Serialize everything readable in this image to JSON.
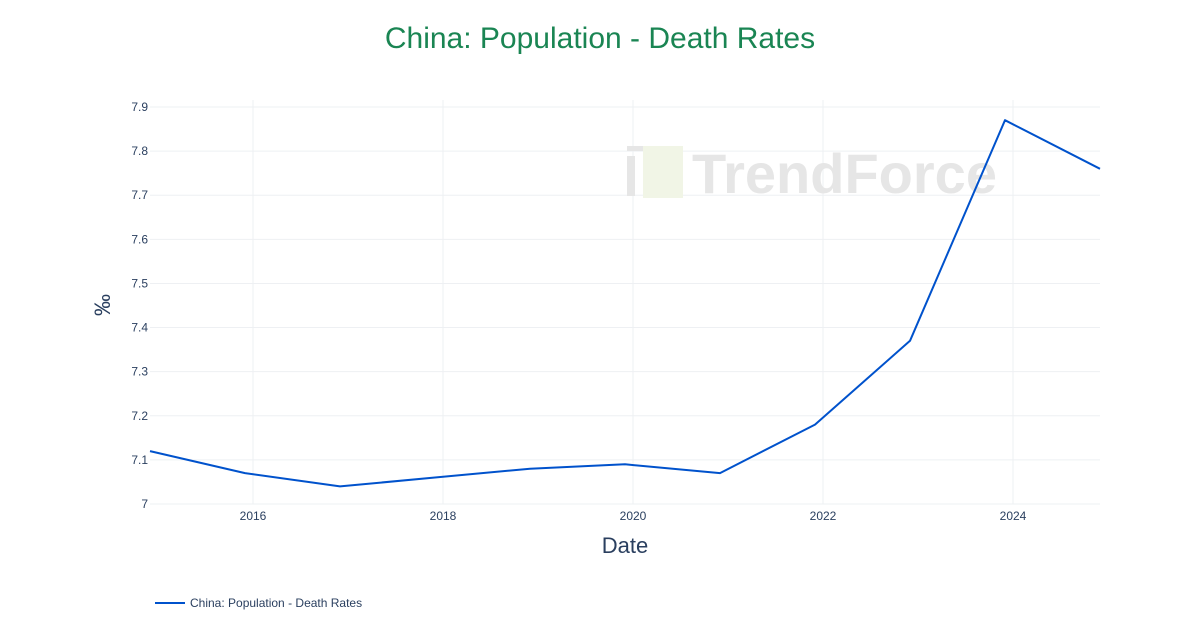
{
  "chart_data": {
    "type": "line",
    "title": "China: Population - Death Rates",
    "xlabel": "Date",
    "ylabel": "‰",
    "x": [
      "2014-12",
      "2015-12",
      "2016-12",
      "2017-12",
      "2018-12",
      "2019-12",
      "2020-12",
      "2021-12",
      "2022-12",
      "2023-12",
      "2024-12"
    ],
    "series": [
      {
        "name": "China: Population - Death Rates",
        "color": "#0052cc",
        "values": [
          7.12,
          7.07,
          7.04,
          7.06,
          7.08,
          7.09,
          7.07,
          7.18,
          7.37,
          7.87,
          7.76
        ]
      }
    ],
    "x_ticks": [
      "2016",
      "2018",
      "2020",
      "2022",
      "2024"
    ],
    "y_ticks": [
      "7",
      "7.1",
      "7.2",
      "7.3",
      "7.4",
      "7.5",
      "7.6",
      "7.7",
      "7.8",
      "7.9"
    ],
    "ylim": [
      7.0,
      7.9
    ],
    "grid": true,
    "legend_position": "bottom-left"
  },
  "header": {
    "title": "China: Population - Death Rates"
  },
  "legend": {
    "label": "China: Population - Death Rates"
  },
  "watermark": {
    "text": "TrendForce"
  },
  "axes": {
    "x_title": "Date",
    "y_title": "‰"
  }
}
